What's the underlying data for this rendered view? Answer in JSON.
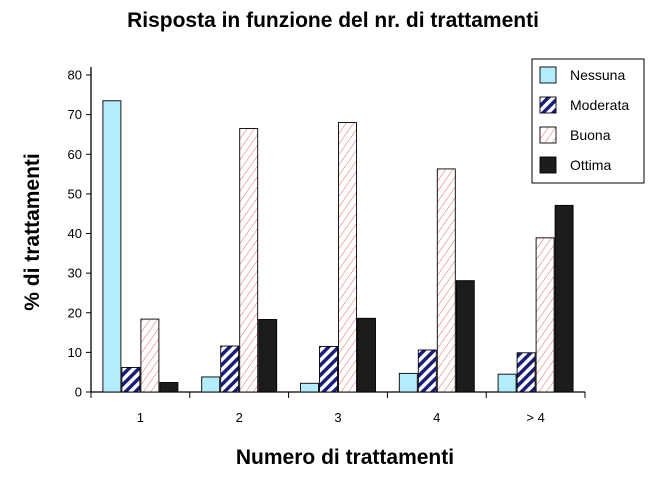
{
  "chart_data": {
    "type": "bar",
    "title": "Risposta in funzione del nr. di trattamenti",
    "xlabel": "Numero di trattamenti",
    "ylabel": "% di trattamenti",
    "categories": [
      "1",
      "2",
      "3",
      "4",
      "> 4"
    ],
    "ylim": [
      0,
      80
    ],
    "yticks": [
      0,
      10,
      20,
      30,
      40,
      50,
      60,
      70,
      80
    ],
    "legend_position": "top-right",
    "grid": false,
    "series": [
      {
        "name": "Nessuna",
        "values": [
          73.5,
          3.8,
          2.2,
          4.7,
          4.5
        ],
        "color": "#b3ecfa",
        "pattern": "solid"
      },
      {
        "name": "Moderata",
        "values": [
          6.2,
          11.6,
          11.5,
          10.6,
          9.9
        ],
        "color": "#1a1e7a",
        "pattern": "blue-diagonal-stripes"
      },
      {
        "name": "Buona",
        "values": [
          18.4,
          66.5,
          68.0,
          56.3,
          38.9
        ],
        "color": "#e04040",
        "pattern": "red-light-hatch"
      },
      {
        "name": "Ottima",
        "values": [
          2.4,
          18.3,
          18.6,
          28.1,
          47.1
        ],
        "color": "#1c1c1c",
        "pattern": "solid"
      }
    ]
  }
}
